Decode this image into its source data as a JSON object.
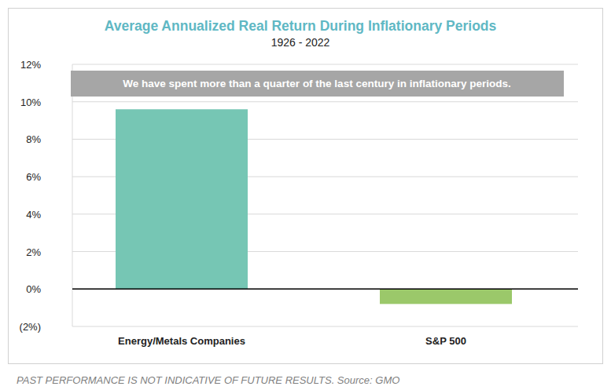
{
  "chart_data": {
    "type": "bar",
    "title": "Average Annualized Real Return During Inflationary Periods",
    "subtitle": "1926 - 2022",
    "annotations": [
      "We have spent more than a quarter of the last century in inflationary periods."
    ],
    "note": "PAST PERFORMANCE IS NOT INDICATIVE OF FUTURE RESULTS. Source: GMO",
    "categories": [
      "Energy/Metals Companies",
      "S&P 500"
    ],
    "values": [
      9.6,
      -0.8
    ],
    "colors": [
      "#76c6b4",
      "#9bc86a"
    ],
    "ylim": [
      -2,
      12
    ],
    "yticks": [
      {
        "value": -2,
        "label": "(2%)"
      },
      {
        "value": 0,
        "label": "0%"
      },
      {
        "value": 2,
        "label": "2%"
      },
      {
        "value": 4,
        "label": "4%"
      },
      {
        "value": 6,
        "label": "6%"
      },
      {
        "value": 8,
        "label": "8%"
      },
      {
        "value": 10,
        "label": "10%"
      },
      {
        "value": 12,
        "label": "12%"
      }
    ],
    "grid": true
  }
}
